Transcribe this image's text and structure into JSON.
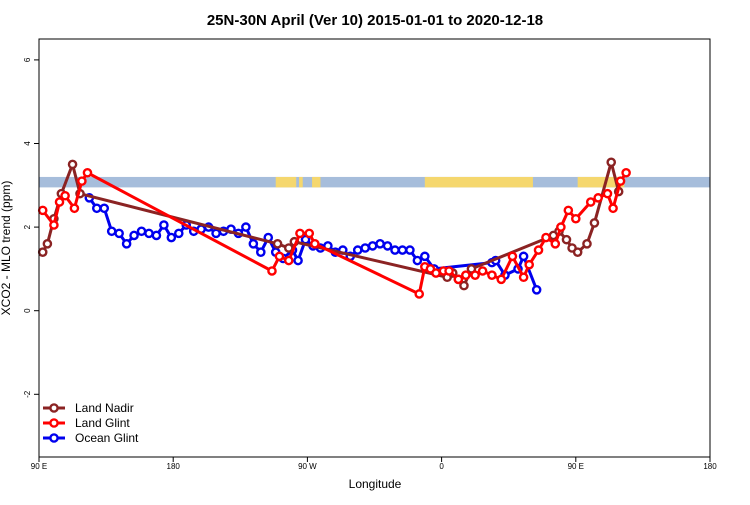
{
  "colors": {
    "land_nadir": "#8b2323",
    "land_glint": "#ff0000",
    "ocean_glint": "#0000ee",
    "band_land": "#f5d76e",
    "band_ocean": "#a6bddb"
  },
  "chart_data": {
    "type": "line",
    "title": "25N-30N April (Ver 10)   2015-01-01 to 2020-12-18",
    "xlabel": "Longitude",
    "ylabel": "XCO2 - MLO trend (ppm)",
    "xlim": [
      0,
      360
    ],
    "ylim": [
      -3.5,
      6.5
    ],
    "x_ticks": [
      {
        "value": 0,
        "label": "90 E"
      },
      {
        "value": 72,
        "label": "180"
      },
      {
        "value": 144,
        "label": "90 W"
      },
      {
        "value": 216,
        "label": "0"
      },
      {
        "value": 288,
        "label": "90 E"
      },
      {
        "value": 360,
        "label": "180"
      }
    ],
    "y_ticks": [
      {
        "value": -2,
        "label": "-2"
      },
      {
        "value": 0,
        "label": "0"
      },
      {
        "value": 2,
        "label": "2"
      },
      {
        "value": 4,
        "label": "4"
      },
      {
        "value": 6,
        "label": "6"
      }
    ],
    "band": {
      "y_low": 2.95,
      "y_high": 3.2,
      "land_ranges": [
        [
          127,
          138
        ],
        [
          139.5,
          141.5
        ],
        [
          146.5,
          151
        ],
        [
          207,
          265
        ],
        [
          289,
          314
        ]
      ]
    },
    "grid": false,
    "legend_position": "bottom-left",
    "series": [
      {
        "name": "Land Nadir",
        "color_key": "land_nadir",
        "points": [
          [
            2,
            1.4
          ],
          [
            4.5,
            1.6
          ],
          [
            8,
            2.2
          ],
          [
            12,
            2.8
          ],
          [
            18,
            3.5
          ],
          [
            22,
            2.8
          ],
          [
            128,
            1.6
          ],
          [
            134,
            1.5
          ],
          [
            137,
            1.65
          ],
          [
            219,
            0.8
          ],
          [
            222,
            0.9
          ],
          [
            225,
            0.75
          ],
          [
            228,
            0.6
          ],
          [
            232,
            1.0
          ],
          [
            276,
            1.8
          ],
          [
            279,
            1.9
          ],
          [
            283,
            1.7
          ],
          [
            286,
            1.5
          ],
          [
            289,
            1.4
          ],
          [
            294,
            1.6
          ],
          [
            298,
            2.1
          ],
          [
            307,
            3.55
          ],
          [
            311,
            2.85
          ]
        ]
      },
      {
        "name": "Land Glint",
        "color_key": "land_glint",
        "points": [
          [
            2,
            2.4
          ],
          [
            8,
            2.05
          ],
          [
            11,
            2.6
          ],
          [
            14,
            2.75
          ],
          [
            19,
            2.45
          ],
          [
            23,
            3.1
          ],
          [
            26,
            3.3
          ],
          [
            125,
            0.95
          ],
          [
            129,
            1.3
          ],
          [
            134,
            1.2
          ],
          [
            140,
            1.85
          ],
          [
            145,
            1.85
          ],
          [
            148,
            1.6
          ],
          [
            204,
            0.4
          ],
          [
            207,
            1.05
          ],
          [
            210,
            1.0
          ],
          [
            213,
            0.9
          ],
          [
            217,
            0.95
          ],
          [
            220,
            0.95
          ],
          [
            225,
            0.75
          ],
          [
            229,
            0.85
          ],
          [
            234,
            0.85
          ],
          [
            238,
            0.95
          ],
          [
            243,
            0.85
          ],
          [
            248,
            0.75
          ],
          [
            254,
            1.3
          ],
          [
            260,
            0.8
          ],
          [
            263,
            1.1
          ],
          [
            268,
            1.45
          ],
          [
            272,
            1.75
          ],
          [
            277,
            1.6
          ],
          [
            280,
            2.0
          ],
          [
            284,
            2.4
          ],
          [
            288,
            2.2
          ],
          [
            296,
            2.6
          ],
          [
            300,
            2.7
          ],
          [
            305,
            2.8
          ],
          [
            308,
            2.45
          ],
          [
            312,
            3.1
          ],
          [
            315,
            3.3
          ]
        ]
      },
      {
        "name": "Ocean Glint",
        "color_key": "ocean_glint",
        "points": [
          [
            27,
            2.7
          ],
          [
            31,
            2.45
          ],
          [
            35,
            2.45
          ],
          [
            39,
            1.9
          ],
          [
            43,
            1.85
          ],
          [
            47,
            1.6
          ],
          [
            51,
            1.8
          ],
          [
            55,
            1.9
          ],
          [
            59,
            1.85
          ],
          [
            63,
            1.8
          ],
          [
            67,
            2.05
          ],
          [
            71,
            1.75
          ],
          [
            75,
            1.85
          ],
          [
            79,
            2.05
          ],
          [
            83,
            1.9
          ],
          [
            87,
            1.95
          ],
          [
            91,
            2.0
          ],
          [
            95,
            1.85
          ],
          [
            99,
            1.9
          ],
          [
            103,
            1.95
          ],
          [
            107,
            1.85
          ],
          [
            111,
            2.0
          ],
          [
            115,
            1.6
          ],
          [
            119,
            1.4
          ],
          [
            123,
            1.75
          ],
          [
            127,
            1.4
          ],
          [
            131,
            1.25
          ],
          [
            136,
            1.45
          ],
          [
            139,
            1.2
          ],
          [
            143,
            1.7
          ],
          [
            147,
            1.55
          ],
          [
            151,
            1.5
          ],
          [
            155,
            1.55
          ],
          [
            159,
            1.4
          ],
          [
            163,
            1.45
          ],
          [
            167,
            1.3
          ],
          [
            171,
            1.45
          ],
          [
            175,
            1.5
          ],
          [
            179,
            1.55
          ],
          [
            183,
            1.6
          ],
          [
            187,
            1.55
          ],
          [
            191,
            1.45
          ],
          [
            195,
            1.45
          ],
          [
            199,
            1.45
          ],
          [
            203,
            1.2
          ],
          [
            207,
            1.3
          ],
          [
            212,
            1.0
          ],
          [
            243,
            1.15
          ],
          [
            245,
            1.2
          ],
          [
            250,
            0.85
          ],
          [
            257,
            1.0
          ],
          [
            260,
            1.3
          ],
          [
            267,
            0.5
          ]
        ]
      }
    ]
  }
}
